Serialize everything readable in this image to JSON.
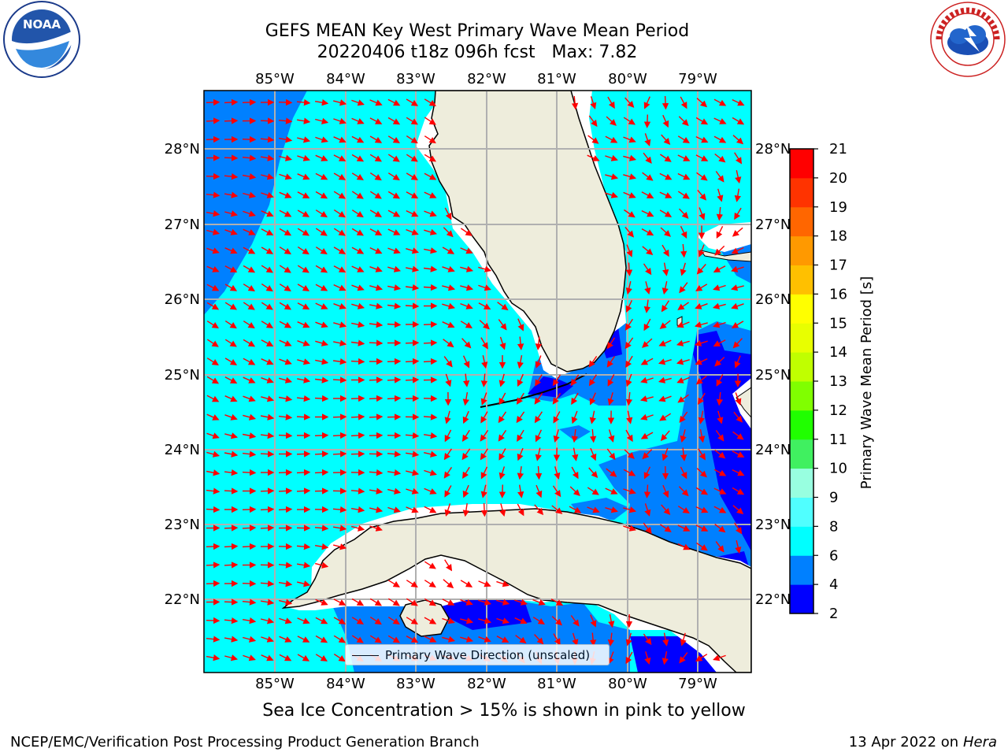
{
  "header": {
    "title_line1": "GEFS MEAN Key West Primary Wave Mean Period",
    "title_line2": "20220406 t18z 096h fcst   Max: 7.82"
  },
  "logos": {
    "left": {
      "icon": "noaa-logo",
      "text": "NOAA",
      "ring_text": "NATIONAL OCEANIC AND ATMOSPHERIC ADMINISTRATION · U.S. DEPARTMENT OF COMMERCE"
    },
    "right": {
      "icon": "nws-logo",
      "ring_text": "NATIONAL WEATHER SERVICE"
    }
  },
  "map": {
    "lon_labels": [
      "85°W",
      "84°W",
      "83°W",
      "82°W",
      "81°W",
      "80°W",
      "79°W"
    ],
    "lat_labels": [
      "28°N",
      "27°N",
      "26°N",
      "25°N",
      "24°N",
      "23°N",
      "22°N"
    ],
    "legend_label": "Primary Wave Direction (unscaled)",
    "arrow_color": "#ff0000",
    "land_color": "#eeeddc"
  },
  "colorbar": {
    "label": "Primary Wave Mean Period [s]",
    "ticks": [
      "2",
      "4",
      "6",
      "8",
      "9",
      "10",
      "11",
      "12",
      "13",
      "14",
      "15",
      "16",
      "17",
      "18",
      "19",
      "20",
      "21"
    ],
    "colors": [
      "#0000ff",
      "#0080ff",
      "#00ffff",
      "#50ffff",
      "#98ffe0",
      "#40f060",
      "#20ff00",
      "#80ff00",
      "#c0ff00",
      "#e8ff00",
      "#ffff00",
      "#ffc000",
      "#ff9900",
      "#ff6600",
      "#ff3300",
      "#ff0000"
    ]
  },
  "notes": {
    "sea_ice": "Sea Ice Concentration > 15% is shown in pink to yellow",
    "footer_left": "NCEP/EMC/Verification Post Processing Product Generation Branch",
    "footer_date": "13 Apr 2022 on ",
    "footer_host": "Hera"
  }
}
